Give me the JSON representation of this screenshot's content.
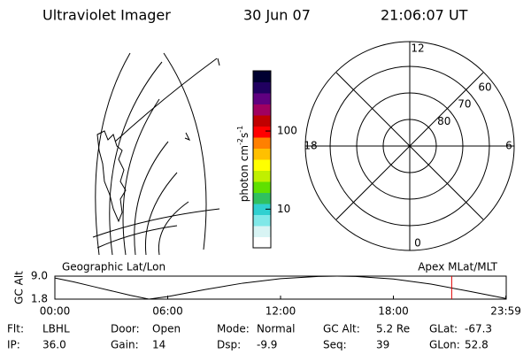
{
  "header": {
    "title": "Ultraviolet Imager",
    "date": "30 Jun 07",
    "time": "21:06:07 UT"
  },
  "colorbar": {
    "label": "photon cm",
    "exp1": "-2",
    "unit2": "s",
    "exp2": "-1",
    "log": true,
    "lim": [
      3.2,
      590
    ],
    "ticks": [
      10,
      100
    ],
    "colors": [
      "#ffffff",
      "#d8f4f4",
      "#80e8e8",
      "#30d0d0",
      "#30c060",
      "#60e000",
      "#c0f000",
      "#ffff00",
      "#ffc000",
      "#ff8000",
      "#ff0000",
      "#c00000",
      "#a00060",
      "#600080",
      "#200060",
      "#000030"
    ]
  },
  "polar": {
    "mlt_labels": [
      12,
      6,
      0,
      18
    ],
    "lat_labels": [
      60,
      70,
      80
    ]
  },
  "chart_data": {
    "type": "line",
    "y_label": "GC Alt",
    "left_label": "Geographic Lat/Lon",
    "right_label": "Apex MLat/MLT",
    "x": [
      0,
      1,
      2,
      3,
      4,
      5,
      6,
      8,
      10,
      12,
      14,
      15,
      16,
      18,
      20,
      22,
      23.98
    ],
    "series": [
      {
        "color": "#000000",
        "values": [
          8.4,
          7.2,
          5.8,
          4.4,
          3.0,
          1.8,
          2.6,
          4.8,
          6.8,
          8.2,
          8.9,
          9.0,
          8.9,
          8.1,
          6.5,
          4.3,
          2.0
        ]
      }
    ],
    "xlim": [
      0,
      24
    ],
    "ylim": [
      1.8,
      9.0
    ],
    "xticks": [
      {
        "value": 0,
        "label": "00:00"
      },
      {
        "value": 6,
        "label": "06:00"
      },
      {
        "value": 12,
        "label": "12:00"
      },
      {
        "value": 18,
        "label": "18:00"
      },
      {
        "value": 23.98,
        "label": "23:59"
      }
    ],
    "yticks": [
      {
        "value": 9.0,
        "label": "9.0"
      },
      1.8
    ],
    "marker_x": 21.1,
    "marker_color": "#e00000"
  },
  "footer": [
    [
      {
        "key": "Flt:",
        "val": "LBHL"
      },
      {
        "key": "Door:",
        "val": "Open"
      },
      {
        "key": "Mode:",
        "val": "Normal"
      },
      {
        "key": "GC Alt:",
        "val": "5.2 Re"
      },
      {
        "key": "GLat:",
        "val": "-67.3"
      }
    ],
    [
      {
        "key": "IP:",
        "val": "36.0"
      },
      {
        "key": "Gain:",
        "val": "14"
      },
      {
        "key": "Dsp:",
        "val": "-9.9"
      },
      {
        "key": "Seq:",
        "val": "39"
      },
      {
        "key": "GLon:",
        "val": "52.8"
      }
    ]
  ]
}
